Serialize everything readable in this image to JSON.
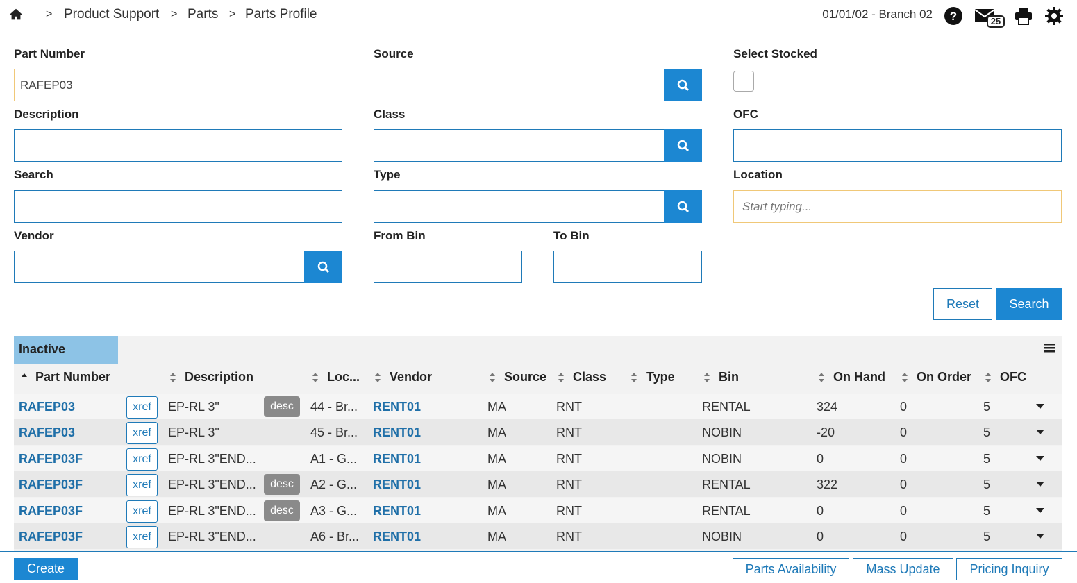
{
  "header": {
    "breadcrumbs": [
      "Product Support",
      "Parts",
      "Parts Profile"
    ],
    "separator": ">",
    "date_branch": "01/01/02 - Branch 02",
    "mail_count": "25"
  },
  "form": {
    "part_number": {
      "label": "Part Number",
      "value": "RAFEP03"
    },
    "source": {
      "label": "Source",
      "value": ""
    },
    "select_stocked": {
      "label": "Select Stocked"
    },
    "description": {
      "label": "Description",
      "value": ""
    },
    "class": {
      "label": "Class",
      "value": ""
    },
    "ofc": {
      "label": "OFC",
      "value": ""
    },
    "search": {
      "label": "Search",
      "value": ""
    },
    "type": {
      "label": "Type",
      "value": ""
    },
    "location": {
      "label": "Location",
      "placeholder": "Start typing..."
    },
    "vendor": {
      "label": "Vendor",
      "value": ""
    },
    "from_bin": {
      "label": "From Bin",
      "value": ""
    },
    "to_bin": {
      "label": "To Bin",
      "value": ""
    },
    "reset_label": "Reset",
    "search_label": "Search"
  },
  "table": {
    "tab_label": "Inactive",
    "columns": [
      "Part Number",
      "Description",
      "Loc...",
      "Vendor",
      "Source",
      "Class",
      "Type",
      "Bin",
      "On Hand",
      "On Order",
      "OFC"
    ],
    "xref_label": "xref",
    "desc_label": "desc",
    "rows": [
      {
        "part": "RAFEP03",
        "desc": "EP-RL 3\"",
        "has_desc": true,
        "loc": "44 - Br...",
        "vendor": "RENT01",
        "source": "MA",
        "class": "RNT",
        "type": "",
        "bin": "RENTAL",
        "on_hand": "324",
        "on_order": "0",
        "ofc": "5"
      },
      {
        "part": "RAFEP03",
        "desc": "EP-RL 3\"",
        "has_desc": false,
        "loc": "45 - Br...",
        "vendor": "RENT01",
        "source": "MA",
        "class": "RNT",
        "type": "",
        "bin": "NOBIN",
        "on_hand": "-20",
        "on_order": "0",
        "ofc": "5"
      },
      {
        "part": "RAFEP03F",
        "desc": "EP-RL 3\"END...",
        "has_desc": false,
        "loc": "A1 - G...",
        "vendor": "RENT01",
        "source": "MA",
        "class": "RNT",
        "type": "",
        "bin": "NOBIN",
        "on_hand": "0",
        "on_order": "0",
        "ofc": "5"
      },
      {
        "part": "RAFEP03F",
        "desc": "EP-RL 3\"END...",
        "has_desc": true,
        "loc": "A2 - G...",
        "vendor": "RENT01",
        "source": "MA",
        "class": "RNT",
        "type": "",
        "bin": "RENTAL",
        "on_hand": "322",
        "on_order": "0",
        "ofc": "5"
      },
      {
        "part": "RAFEP03F",
        "desc": "EP-RL 3\"END...",
        "has_desc": true,
        "loc": "A3 - G...",
        "vendor": "RENT01",
        "source": "MA",
        "class": "RNT",
        "type": "",
        "bin": "RENTAL",
        "on_hand": "0",
        "on_order": "0",
        "ofc": "5"
      },
      {
        "part": "RAFEP03F",
        "desc": "EP-RL 3\"END...",
        "has_desc": false,
        "loc": "A6 - Br...",
        "vendor": "RENT01",
        "source": "MA",
        "class": "RNT",
        "type": "",
        "bin": "NOBIN",
        "on_hand": "0",
        "on_order": "0",
        "ofc": "5"
      }
    ]
  },
  "footer": {
    "create_label": "Create",
    "parts_availability_label": "Parts Availability",
    "mass_update_label": "Mass Update",
    "pricing_inquiry_label": "Pricing Inquiry"
  },
  "colors": {
    "accent": "#1c87d2",
    "link": "#1f6fa8",
    "tab": "#8dc3e6",
    "desc_tag": "#8a8a8a"
  },
  "icons": [
    "home-icon",
    "help-icon",
    "mail-icon",
    "print-icon",
    "gear-icon",
    "search-icon",
    "menu-icon",
    "sort-icon",
    "caret-down-icon"
  ]
}
